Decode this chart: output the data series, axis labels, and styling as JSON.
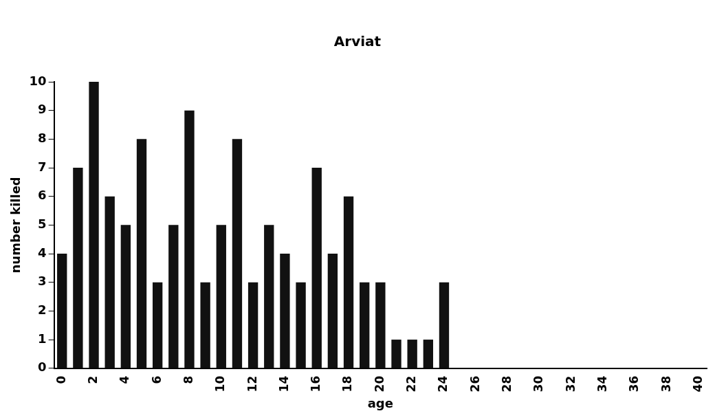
{
  "chart_data": {
    "type": "bar",
    "title": "Arviat",
    "xlabel": "age",
    "ylabel": "number killed",
    "categories": [
      "0",
      null,
      "2",
      null,
      "4",
      null,
      "6",
      null,
      "8",
      null,
      "10",
      null,
      "12",
      null,
      "14",
      null,
      "16",
      null,
      "18",
      null,
      "20",
      null,
      "22",
      null,
      "24",
      null,
      "26",
      null,
      "28",
      null,
      "30",
      null,
      "32",
      null,
      "34",
      null,
      "36",
      null,
      "38",
      null,
      "40"
    ],
    "values": [
      4,
      7,
      10,
      6,
      5,
      8,
      3,
      5,
      9,
      3,
      5,
      8,
      3,
      5,
      4,
      3,
      7,
      4,
      6,
      3,
      3,
      1,
      1,
      1,
      3,
      0,
      0,
      0,
      0,
      0,
      0,
      0,
      0,
      0,
      0,
      0,
      0,
      0,
      0,
      0,
      0
    ],
    "color": "#111111",
    "ylim": [
      0,
      10
    ],
    "yticks": [
      0,
      1,
      2,
      3,
      4,
      5,
      6,
      7,
      8,
      9,
      10
    ],
    "grid": false,
    "legend": false
  }
}
